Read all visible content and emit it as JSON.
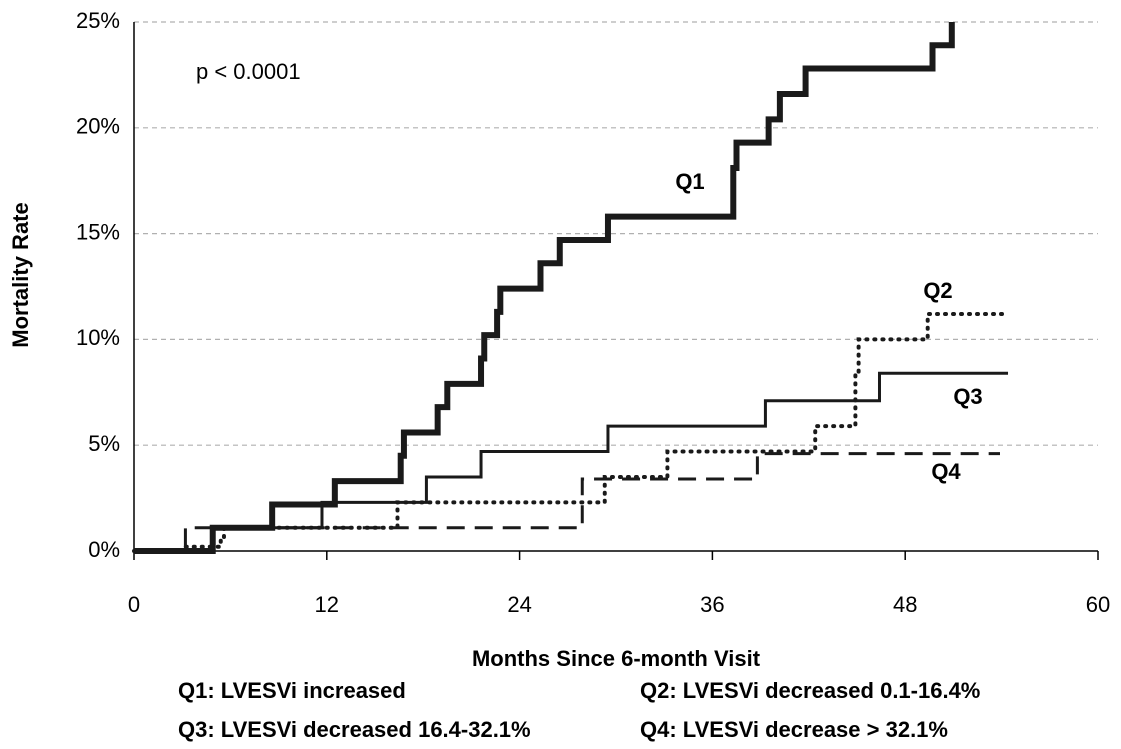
{
  "chart_data": {
    "type": "line",
    "drawstyle": "steps-post",
    "x_label": "Months Since 6-month Visit",
    "y_label": "Mortality Rate",
    "annotation": "p < 0.0001",
    "xlim": [
      0,
      60
    ],
    "xticks": [
      0,
      12,
      24,
      36,
      48,
      60
    ],
    "ylim": [
      0,
      25
    ],
    "yticks": [
      {
        "value": 0,
        "label": "0%"
      },
      {
        "value": 5,
        "label": "5%"
      },
      {
        "value": 10,
        "label": "10%"
      },
      {
        "value": 15,
        "label": "15%"
      },
      {
        "value": 20,
        "label": "20%"
      },
      {
        "value": 25,
        "label": "25%"
      }
    ],
    "grid": true,
    "series": [
      {
        "name": "Q1",
        "color": "#1a1a1a",
        "dash": "solid",
        "linewidth": 6,
        "x": [
          0,
          4.9,
          8.6,
          12.5,
          16.6,
          16.8,
          18.9,
          19.5,
          21.6,
          21.8,
          22.6,
          22.8,
          25.3,
          26.5,
          29.5,
          37.3,
          37.5,
          39.5,
          40.2,
          41.8,
          49.7,
          50.9
        ],
        "values": [
          0,
          1.1,
          2.2,
          3.3,
          4.5,
          5.6,
          6.8,
          7.9,
          9.1,
          10.2,
          11.3,
          12.4,
          13.6,
          14.7,
          15.8,
          18.1,
          19.3,
          20.4,
          21.6,
          22.8,
          23.9,
          25
        ]
      },
      {
        "name": "Q2",
        "color": "#1a1a1a",
        "dash": "dotted",
        "linewidth": 4,
        "x": [
          0,
          3.0,
          5.4,
          5.6,
          16.4,
          29.3,
          33.2,
          42.4,
          44.9,
          45.1,
          49.4,
          54.4
        ],
        "values": [
          0,
          0.2,
          0.5,
          1.1,
          2.3,
          3.5,
          4.7,
          5.9,
          8.4,
          10.0,
          11.2,
          11.2
        ]
      },
      {
        "name": "Q3",
        "color": "#1a1a1a",
        "dash": "solid",
        "linewidth": 3,
        "x": [
          0,
          4.9,
          11.7,
          18.2,
          21.6,
          29.5,
          39.3,
          46.4,
          54.4
        ],
        "values": [
          0,
          1.1,
          2.3,
          3.5,
          4.7,
          5.9,
          7.1,
          8.4,
          8.4
        ]
      },
      {
        "name": "Q4",
        "color": "#1a1a1a",
        "dash": "dashed",
        "linewidth": 3,
        "x": [
          0,
          3.2,
          27.9,
          38.8,
          53.9
        ],
        "values": [
          0,
          1.1,
          3.4,
          4.6,
          4.6
        ]
      }
    ],
    "legend": [
      "Q1: LVESVi increased",
      "Q2: LVESVi decreased 0.1-16.4%",
      "Q3: LVESVi decreased 16.4-32.1%",
      "Q4: LVESVi decrease > 32.1%"
    ]
  }
}
